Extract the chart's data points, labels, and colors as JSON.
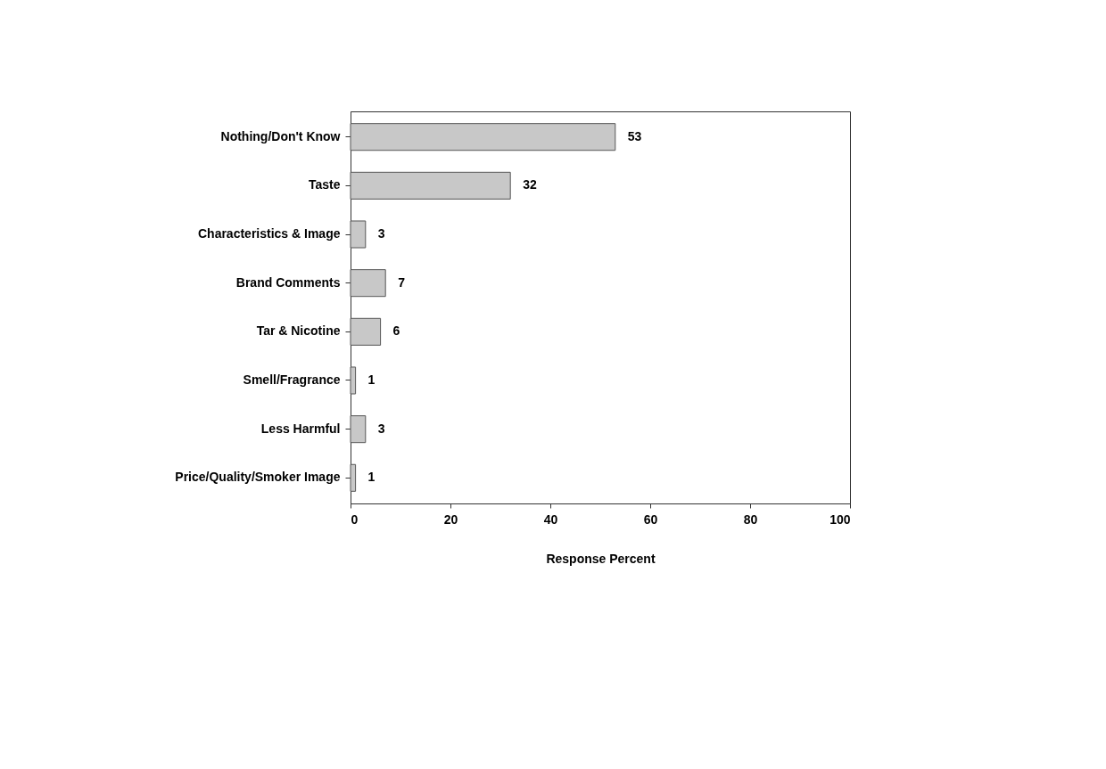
{
  "chart_data": {
    "type": "bar",
    "orientation": "horizontal",
    "categories": [
      "Nothing/Don't Know",
      "Taste",
      "Characteristics & Image",
      "Brand Comments",
      "Tar & Nicotine",
      "Smell/Fragrance",
      "Less Harmful",
      "Price/Quality/Smoker Image"
    ],
    "values": [
      53,
      32,
      3,
      7,
      6,
      1,
      3,
      1
    ],
    "color": "#c8c8c8",
    "xlim": [
      0,
      100
    ],
    "xticks": [
      0,
      20,
      40,
      60,
      80,
      100
    ],
    "xlabel": "Response Percent",
    "data_labels": true,
    "grid": false
  }
}
